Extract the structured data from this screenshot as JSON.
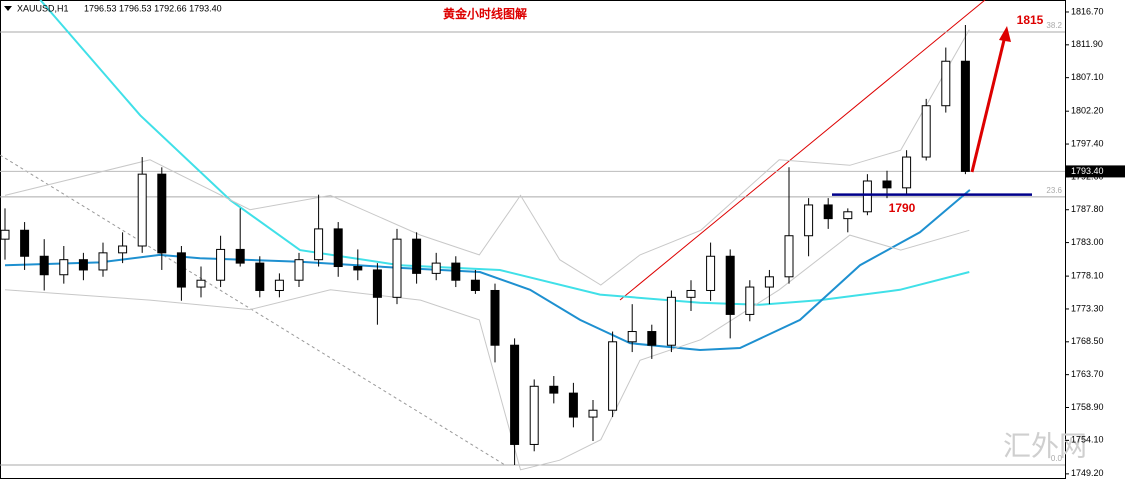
{
  "chart_data": {
    "type": "candlestick",
    "title": "黄金小时线图解",
    "symbol": "XAUUSD,H1",
    "quote": "1796.53 1796.53 1792.66 1793.40",
    "watermark": "汇外网",
    "ylim": [
      1748.45,
      1818.45
    ],
    "yticks": [
      {
        "value": 1816.7,
        "label": "1816.70"
      },
      {
        "value": 1811.9,
        "label": "1811.90"
      },
      {
        "value": 1807.1,
        "label": "1807.10"
      },
      {
        "value": 1802.2,
        "label": "1802.20"
      },
      {
        "value": 1797.4,
        "label": "1797.40"
      },
      {
        "value": 1792.6,
        "label": "1792.60"
      },
      {
        "value": 1787.8,
        "label": "1787.80"
      },
      {
        "value": 1783,
        "label": "1783.00"
      },
      {
        "value": 1778.1,
        "label": "1778.10"
      },
      {
        "value": 1773.3,
        "label": "1773.30"
      },
      {
        "value": 1768.5,
        "label": "1768.50"
      },
      {
        "value": 1763.7,
        "label": "1763.70"
      },
      {
        "value": 1758.9,
        "label": "1758.90"
      },
      {
        "value": 1754.1,
        "label": "1754.10"
      },
      {
        "value": 1749.2,
        "label": "1749.20"
      }
    ],
    "last_price": {
      "value": 1793.4,
      "label": "1793.40"
    },
    "fib_levels": [
      {
        "value": 1813.77,
        "label": "38.2"
      },
      {
        "value": 1789.67,
        "label": "23.6"
      },
      {
        "value": 1750.5,
        "label": "0.0"
      }
    ],
    "support": {
      "value": 1790,
      "label": "1790",
      "color": "#00008b"
    },
    "target_label": "1815",
    "ohlc": [
      [
        1783.5,
        1788.0,
        1780.5,
        1784.8
      ],
      [
        1784.8,
        1786.0,
        1779.0,
        1781.0
      ],
      [
        1781.0,
        1783.5,
        1776.0,
        1778.3
      ],
      [
        1778.3,
        1782.5,
        1777.0,
        1780.5
      ],
      [
        1780.5,
        1781.5,
        1777.5,
        1779.0
      ],
      [
        1779.0,
        1783.0,
        1778.0,
        1781.5
      ],
      [
        1781.5,
        1784.5,
        1780.0,
        1782.5
      ],
      [
        1782.5,
        1795.5,
        1781.5,
        1793.0
      ],
      [
        1793.0,
        1794.0,
        1779.0,
        1781.5
      ],
      [
        1781.5,
        1782.5,
        1774.5,
        1776.5
      ],
      [
        1776.5,
        1779.5,
        1775.0,
        1777.5
      ],
      [
        1777.5,
        1784.0,
        1776.5,
        1782.0
      ],
      [
        1782.0,
        1788.0,
        1779.5,
        1780.0
      ],
      [
        1780.0,
        1781.0,
        1775.0,
        1776.0
      ],
      [
        1776.0,
        1778.5,
        1775.0,
        1777.5
      ],
      [
        1777.5,
        1781.5,
        1776.5,
        1780.5
      ],
      [
        1780.5,
        1790.0,
        1779.5,
        1785.0
      ],
      [
        1785.0,
        1786.0,
        1778.0,
        1779.5
      ],
      [
        1779.5,
        1782.0,
        1777.5,
        1779.0
      ],
      [
        1779.0,
        1780.0,
        1771.0,
        1775.0
      ],
      [
        1775.0,
        1785.0,
        1774.0,
        1783.5
      ],
      [
        1783.5,
        1784.5,
        1777.0,
        1778.5
      ],
      [
        1778.5,
        1781.5,
        1777.5,
        1780.0
      ],
      [
        1780.0,
        1781.0,
        1776.5,
        1777.5
      ],
      [
        1777.5,
        1779.0,
        1775.5,
        1776.0
      ],
      [
        1776.0,
        1777.0,
        1765.5,
        1768.0
      ],
      [
        1768.0,
        1769.0,
        1750.5,
        1753.5
      ],
      [
        1753.5,
        1763.0,
        1752.5,
        1762.0
      ],
      [
        1762.0,
        1763.5,
        1759.5,
        1761.0
      ],
      [
        1761.0,
        1762.5,
        1756.0,
        1757.5
      ],
      [
        1757.5,
        1760.0,
        1754.0,
        1758.5
      ],
      [
        1758.5,
        1770.0,
        1757.5,
        1768.5
      ],
      [
        1768.5,
        1774.0,
        1767.0,
        1770.0
      ],
      [
        1770.0,
        1771.0,
        1766.0,
        1768.0
      ],
      [
        1768.0,
        1776.0,
        1767.0,
        1775.0
      ],
      [
        1775.0,
        1777.5,
        1773.0,
        1776.0
      ],
      [
        1776.0,
        1783.0,
        1774.5,
        1781.0
      ],
      [
        1781.0,
        1782.0,
        1769.0,
        1772.5
      ],
      [
        1772.5,
        1777.5,
        1771.5,
        1776.5
      ],
      [
        1776.5,
        1779.0,
        1774.0,
        1778.0
      ],
      [
        1778.0,
        1794.0,
        1777.0,
        1784.0
      ],
      [
        1784.0,
        1789.5,
        1781.0,
        1788.5
      ],
      [
        1788.5,
        1789.5,
        1785.0,
        1786.5
      ],
      [
        1786.5,
        1788.0,
        1784.5,
        1787.5
      ],
      [
        1787.5,
        1793.0,
        1787.0,
        1792.0
      ],
      [
        1792.0,
        1793.5,
        1789.5,
        1791.0
      ],
      [
        1791.0,
        1796.5,
        1790.0,
        1795.5
      ],
      [
        1795.5,
        1804.0,
        1795.0,
        1803.0
      ],
      [
        1803.0,
        1811.5,
        1802.0,
        1809.5
      ],
      [
        1809.5,
        1814.8,
        1793.0,
        1793.4
      ]
    ],
    "overlays": [
      {
        "color": "#40e0e8",
        "x": [
          1.8,
          6.9,
          11.5,
          15.05,
          20.15,
          25.25,
          30.36,
          35.46,
          38.5,
          41.58,
          45.66,
          49.2
        ],
        "values": [
          1818.45,
          1801.6,
          1789.2,
          1781.9,
          1779.7,
          1779.0,
          1775.4,
          1774.2,
          1773.9,
          1774.6,
          1776.1,
          1778.7
        ]
      },
      {
        "color": "#1e90d0",
        "x": [
          0,
          4.85,
          7.9,
          9.95,
          15.05,
          20.15,
          24.23,
          26.79,
          29.34,
          31.89,
          35.46,
          37.5,
          40.56,
          43.62,
          46.68,
          49.23
        ],
        "values": [
          1779.7,
          1780.1,
          1781.2,
          1780.7,
          1780.2,
          1779.3,
          1778.7,
          1776.1,
          1771.7,
          1768.3,
          1767.3,
          1767.6,
          1771.7,
          1779.7,
          1784.5,
          1790.7
        ]
      },
      {
        "color": "#c8c8c8",
        "x": [
          0,
          7.4,
          12.5,
          16.6,
          21.2,
          24.2,
          26.3,
          28.3,
          30.4,
          32.4,
          35.5,
          39.5,
          43.1,
          45.7,
          49.2
        ],
        "values": [
          1789.9,
          1795.1,
          1787.8,
          1789.9,
          1784.1,
          1781.2,
          1789.9,
          1780.5,
          1776.8,
          1781.2,
          1784.8,
          1795.1,
          1794.3,
          1796.5,
          1814.1
        ]
      },
      {
        "color": "#c8c8c8",
        "x": [
          0,
          7.4,
          12.5,
          16.6,
          21.2,
          24.2,
          26.3,
          28.3,
          30.4,
          32.4,
          35.5,
          39.5,
          43.1,
          45.7,
          49.2
        ],
        "values": [
          1776.1,
          1774.6,
          1773.2,
          1776.1,
          1774.6,
          1771.7,
          1749.8,
          1751.2,
          1754.2,
          1765.8,
          1768.8,
          1776.1,
          1784.1,
          1781.9,
          1784.8
        ]
      }
    ]
  }
}
